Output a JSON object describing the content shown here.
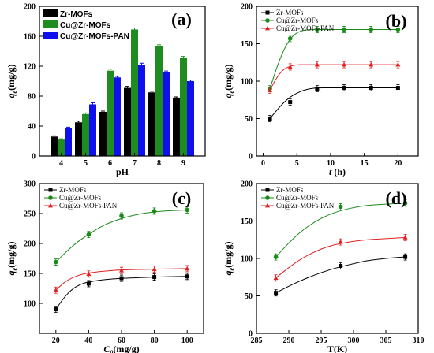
{
  "colors": {
    "zr": "#000000",
    "cu": "#1a8a1a",
    "pan": "#e02020",
    "pan_bar": "#1010ee",
    "green_bar": "#1f8c1f"
  },
  "chart_data": [
    {
      "id": "a",
      "type": "bar",
      "panel_label": "(a)",
      "xlabel": "pH",
      "ylabel": "q",
      "ylabel_sub": "e",
      "ylabel_unit": "(mg/g)",
      "ylim": [
        0,
        200
      ],
      "yticks": [
        0,
        40,
        80,
        120,
        160,
        200
      ],
      "categories": [
        "4",
        "5",
        "6",
        "7",
        "8",
        "9"
      ],
      "series": [
        {
          "name": "Zr-MOFs",
          "values": [
            26,
            45,
            59,
            91,
            85,
            78
          ],
          "errors": [
            1,
            1.5,
            1,
            2,
            1.5,
            1
          ]
        },
        {
          "name": "Cu@Zr-MOFs",
          "values": [
            22,
            56,
            114,
            169,
            147,
            131
          ],
          "errors": [
            1,
            1.5,
            2,
            2,
            1.5,
            2
          ]
        },
        {
          "name": "Cu@Zr-MOFs-PAN",
          "values": [
            37,
            69,
            105,
            122,
            112,
            100
          ],
          "errors": [
            1.5,
            2,
            1.5,
            2,
            1.5,
            1.5
          ]
        }
      ],
      "legend": "top-left",
      "grid": false
    },
    {
      "id": "b",
      "type": "scatter",
      "panel_label": "(b)",
      "xlabel": "t",
      "xlabel_unit": "(h)",
      "ylabel": "q",
      "ylabel_sub": "e",
      "ylabel_unit": "(mg/g)",
      "xlim": [
        -1,
        23
      ],
      "ylim": [
        0,
        200
      ],
      "xticks": [
        0,
        5,
        10,
        15,
        20
      ],
      "yticks": [
        0,
        50,
        100,
        150,
        200
      ],
      "series": [
        {
          "name": "Zr-MOFs",
          "marker": "square",
          "x": [
            1,
            4,
            8,
            12,
            16,
            20
          ],
          "y": [
            50,
            72,
            90,
            91,
            91,
            91
          ],
          "fit_x": [
            1,
            2,
            3,
            4,
            5,
            6,
            7,
            8,
            10,
            12,
            16,
            20
          ],
          "fit_y": [
            50,
            61,
            71,
            79,
            84,
            88,
            90,
            91,
            91,
            91,
            91,
            91
          ]
        },
        {
          "name": "Cu@Zr-MOFs",
          "marker": "circle",
          "x": [
            1,
            4,
            8,
            12,
            16,
            20
          ],
          "y": [
            90,
            157,
            169,
            169,
            169,
            169
          ],
          "fit_x": [
            1,
            2,
            3,
            4,
            5,
            6,
            7,
            8,
            10,
            12,
            16,
            20
          ],
          "fit_y": [
            90,
            118,
            141,
            157,
            165,
            168,
            169,
            169,
            169,
            169,
            169,
            169
          ]
        },
        {
          "name": "Cu@Zr-MOFs-PAN",
          "marker": "triangle",
          "x": [
            1,
            4,
            8,
            12,
            16,
            20
          ],
          "y": [
            88,
            119,
            122,
            122,
            122,
            122
          ],
          "fit_x": [
            1,
            2,
            3,
            4,
            5,
            6,
            8,
            12,
            16,
            20
          ],
          "fit_y": [
            88,
            105,
            116,
            120,
            122,
            122,
            122,
            122,
            122,
            122
          ]
        }
      ],
      "legend": "top-left",
      "grid": false
    },
    {
      "id": "c",
      "type": "scatter",
      "panel_label": "(c)",
      "xlabel": "C",
      "xlabel_sub": "0",
      "xlabel_unit": "(mg/g)",
      "ylabel": "q",
      "ylabel_sub": "e",
      "ylabel_unit": "(mg/g)",
      "xlim": [
        10,
        110
      ],
      "ylim": [
        50,
        300
      ],
      "xticks": [
        20,
        40,
        60,
        80,
        100
      ],
      "yticks": [
        100,
        150,
        200,
        250,
        300
      ],
      "series": [
        {
          "name": "Zr-MOFs",
          "marker": "square",
          "x": [
            20,
            40,
            60,
            80,
            100
          ],
          "y": [
            90,
            133,
            142,
            144,
            145
          ],
          "fit_x": [
            20,
            25,
            30,
            35,
            40,
            50,
            60,
            80,
            100
          ],
          "fit_y": [
            90,
            110,
            124,
            132,
            136,
            140,
            142,
            144,
            145
          ]
        },
        {
          "name": "Cu@Zr-MOFs",
          "marker": "circle",
          "x": [
            20,
            40,
            60,
            80,
            100
          ],
          "y": [
            169,
            215,
            246,
            254,
            256
          ],
          "fit_x": [
            20,
            30,
            40,
            50,
            60,
            70,
            80,
            90,
            100
          ],
          "fit_y": [
            169,
            196,
            216,
            232,
            242,
            249,
            253,
            255,
            256
          ]
        },
        {
          "name": "Cu@Zr-MOFs-PAN",
          "marker": "triangle",
          "x": [
            20,
            40,
            60,
            80,
            100
          ],
          "y": [
            122,
            149,
            155,
            157,
            158
          ],
          "fit_x": [
            20,
            25,
            30,
            35,
            40,
            50,
            60,
            80,
            100
          ],
          "fit_y": [
            122,
            135,
            143,
            148,
            151,
            154,
            156,
            157,
            158
          ]
        }
      ],
      "legend": "top-left",
      "grid": false
    },
    {
      "id": "d",
      "type": "scatter",
      "panel_label": "(d)",
      "xlabel": "T(K)",
      "ylabel": "q",
      "ylabel_sub": "e",
      "ylabel_unit": "(mg/g)",
      "xlim": [
        285,
        310
      ],
      "ylim": [
        0,
        200
      ],
      "xticks": [
        285,
        290,
        295,
        300,
        305,
        310
      ],
      "yticks": [
        0,
        50,
        100,
        150,
        200
      ],
      "series": [
        {
          "name": "Zr-MOFs",
          "marker": "square",
          "x": [
            288,
            298,
            308
          ],
          "y": [
            54,
            90,
            102
          ],
          "fit_x": [
            288,
            290,
            292,
            294,
            296,
            298,
            300,
            302,
            304,
            306,
            308
          ],
          "fit_y": [
            54,
            63,
            71,
            78,
            84,
            89,
            93,
            97,
            99,
            101,
            102
          ]
        },
        {
          "name": "Cu@Zr-MOFs",
          "marker": "circle",
          "x": [
            288,
            298,
            308
          ],
          "y": [
            102,
            169,
            174
          ],
          "fit_x": [
            288,
            290,
            292,
            294,
            296,
            298,
            300,
            302,
            304,
            306,
            308
          ],
          "fit_y": [
            102,
            121,
            137,
            149,
            158,
            164,
            168,
            171,
            172,
            173,
            174
          ]
        },
        {
          "name": "Cu@Zr-MOFs-PAN",
          "marker": "triangle",
          "x": [
            288,
            298,
            308
          ],
          "y": [
            74,
            122,
            128
          ],
          "fit_x": [
            288,
            290,
            292,
            294,
            296,
            298,
            300,
            302,
            304,
            306,
            308
          ],
          "fit_y": [
            74,
            88,
            100,
            109,
            116,
            120,
            123,
            125,
            126,
            127,
            128
          ]
        }
      ],
      "legend": "top-left",
      "grid": false
    }
  ]
}
